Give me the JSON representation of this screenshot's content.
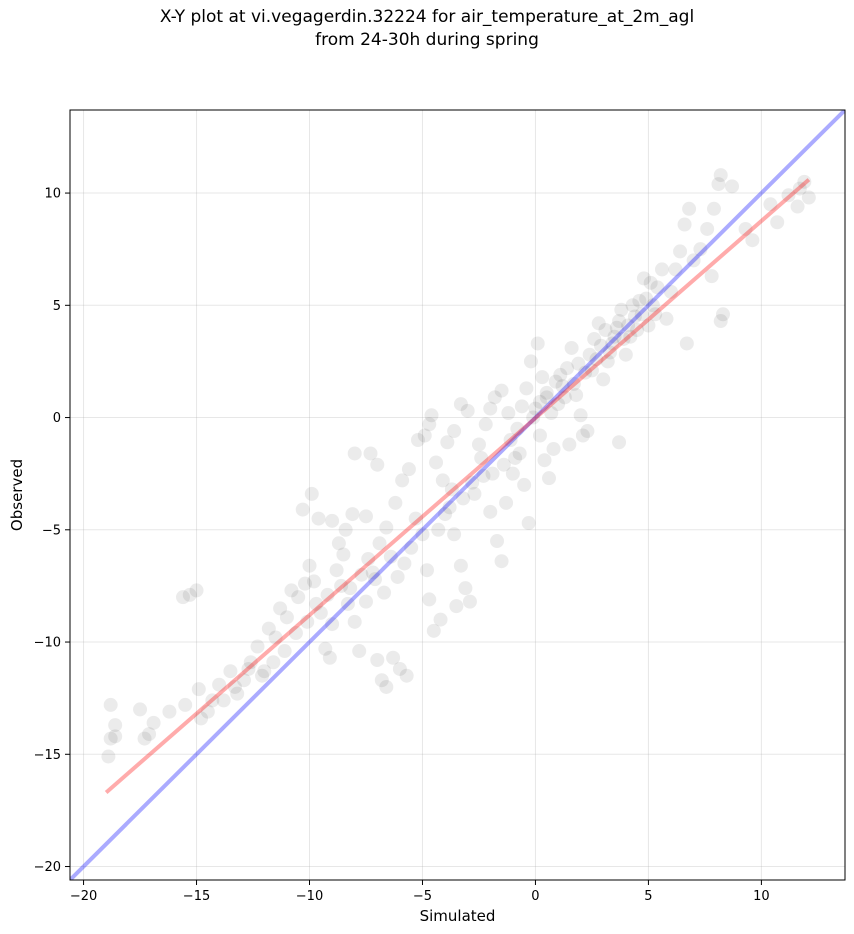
{
  "title": {
    "line1": "X-Y plot at vi.vegagerdin.32224 for air_temperature_at_2m_agl",
    "line2": "from 24-30h during spring"
  },
  "chart_data": {
    "type": "scatter",
    "xlabel": "Simulated",
    "ylabel": "Observed",
    "xlim": [
      -20.6,
      13.7
    ],
    "ylim": [
      -20.6,
      13.7
    ],
    "xticks": [
      -20,
      -15,
      -10,
      -5,
      0,
      5,
      10
    ],
    "yticks": [
      -20,
      -15,
      -10,
      -5,
      0,
      5,
      10
    ],
    "grid": true,
    "point_color": "#000000",
    "point_alpha": 0.08,
    "series": [
      {
        "points": [
          [
            -18.9,
            -15.1
          ],
          [
            -18.8,
            -14.3
          ],
          [
            -18.8,
            -12.8
          ],
          [
            -18.6,
            -14.2
          ],
          [
            -18.6,
            -13.7
          ],
          [
            -17.5,
            -13.0
          ],
          [
            -17.3,
            -14.3
          ],
          [
            -17.1,
            -14.1
          ],
          [
            -16.9,
            -13.6
          ],
          [
            -16.2,
            -13.1
          ],
          [
            -15.6,
            -8.0
          ],
          [
            -15.3,
            -7.9
          ],
          [
            -15.0,
            -7.7
          ],
          [
            -15.5,
            -12.8
          ],
          [
            -14.9,
            -12.1
          ],
          [
            -14.8,
            -13.4
          ],
          [
            -14.5,
            -13.1
          ],
          [
            -14.3,
            -12.6
          ],
          [
            -14.0,
            -11.9
          ],
          [
            -13.5,
            -11.3
          ],
          [
            -13.2,
            -12.3
          ],
          [
            -12.9,
            -11.7
          ],
          [
            -12.6,
            -10.9
          ],
          [
            -12.3,
            -10.2
          ],
          [
            -12.0,
            -11.3
          ],
          [
            -11.8,
            -9.4
          ],
          [
            -11.5,
            -9.8
          ],
          [
            -11.3,
            -8.5
          ],
          [
            -11.0,
            -8.9
          ],
          [
            -10.8,
            -7.7
          ],
          [
            -10.5,
            -8.0
          ],
          [
            -10.2,
            -7.4
          ],
          [
            -10.0,
            -6.6
          ],
          [
            -9.8,
            -7.3
          ],
          [
            -9.5,
            -8.7
          ],
          [
            -9.0,
            -9.2
          ],
          [
            -9.9,
            -3.4
          ],
          [
            -10.3,
            -4.1
          ],
          [
            -9.6,
            -4.5
          ],
          [
            -9.0,
            -4.6
          ],
          [
            -9.3,
            -10.3
          ],
          [
            -9.1,
            -10.7
          ],
          [
            -8.7,
            -5.6
          ],
          [
            -8.4,
            -5.0
          ],
          [
            -8.1,
            -4.3
          ],
          [
            -8.0,
            -1.6
          ],
          [
            -7.5,
            -4.4
          ],
          [
            -7.3,
            -1.6
          ],
          [
            -7.0,
            -2.1
          ],
          [
            -8.8,
            -6.8
          ],
          [
            -8.5,
            -6.1
          ],
          [
            -8.2,
            -7.6
          ],
          [
            -8.0,
            -9.1
          ],
          [
            -7.8,
            -10.4
          ],
          [
            -7.5,
            -8.2
          ],
          [
            -7.2,
            -6.9
          ],
          [
            -7.0,
            -10.8
          ],
          [
            -6.8,
            -11.7
          ],
          [
            -6.6,
            -12.0
          ],
          [
            -6.3,
            -10.7
          ],
          [
            -6.0,
            -11.2
          ],
          [
            -5.7,
            -11.5
          ],
          [
            -6.9,
            -5.6
          ],
          [
            -6.6,
            -4.9
          ],
          [
            -6.2,
            -3.8
          ],
          [
            -5.9,
            -2.8
          ],
          [
            -5.6,
            -2.3
          ],
          [
            -5.3,
            -4.5
          ],
          [
            -5.0,
            -5.2
          ],
          [
            -4.8,
            -6.8
          ],
          [
            -4.7,
            -8.1
          ],
          [
            -4.5,
            -9.5
          ],
          [
            -4.2,
            -9.0
          ],
          [
            -5.2,
            -1.0
          ],
          [
            -4.9,
            -0.8
          ],
          [
            -4.7,
            -0.3
          ],
          [
            -4.6,
            0.1
          ],
          [
            -4.4,
            -2.0
          ],
          [
            -4.1,
            -2.8
          ],
          [
            -3.8,
            -4.0
          ],
          [
            -3.6,
            -5.2
          ],
          [
            -3.3,
            -6.6
          ],
          [
            -3.1,
            -7.6
          ],
          [
            -3.5,
            -8.4
          ],
          [
            -2.9,
            -8.2
          ],
          [
            -3.9,
            -1.1
          ],
          [
            -3.6,
            -0.6
          ],
          [
            -3.3,
            0.6
          ],
          [
            -3.0,
            0.3
          ],
          [
            -2.5,
            -1.2
          ],
          [
            -2.2,
            -0.3
          ],
          [
            -2.0,
            0.4
          ],
          [
            -1.8,
            0.9
          ],
          [
            -1.5,
            1.2
          ],
          [
            -1.2,
            0.2
          ],
          [
            -2.7,
            -3.4
          ],
          [
            -2.3,
            -2.6
          ],
          [
            -2.0,
            -4.2
          ],
          [
            -1.7,
            -5.5
          ],
          [
            -1.5,
            -6.4
          ],
          [
            -1.3,
            -3.8
          ],
          [
            -1.0,
            -2.5
          ],
          [
            -0.7,
            -1.6
          ],
          [
            -0.5,
            -3.0
          ],
          [
            -0.3,
            -4.7
          ],
          [
            -0.8,
            -0.5
          ],
          [
            -0.6,
            0.5
          ],
          [
            -0.4,
            1.3
          ],
          [
            -0.2,
            2.5
          ],
          [
            0.1,
            3.3
          ],
          [
            0.3,
            1.8
          ],
          [
            0.5,
            0.9
          ],
          [
            0.7,
            0.2
          ],
          [
            0.2,
            -0.8
          ],
          [
            0.4,
            -1.9
          ],
          [
            0.6,
            -2.7
          ],
          [
            0.8,
            -1.4
          ],
          [
            1.0,
            0.6
          ],
          [
            1.2,
            1.4
          ],
          [
            1.4,
            2.2
          ],
          [
            1.6,
            3.1
          ],
          [
            1.8,
            1.0
          ],
          [
            2.0,
            0.1
          ],
          [
            2.1,
            -0.8
          ],
          [
            1.5,
            -1.2
          ],
          [
            2.2,
            2.0
          ],
          [
            2.4,
            2.8
          ],
          [
            2.6,
            3.5
          ],
          [
            2.8,
            4.2
          ],
          [
            3.0,
            1.7
          ],
          [
            3.2,
            2.5
          ],
          [
            3.4,
            3.3
          ],
          [
            3.6,
            4.0
          ],
          [
            3.8,
            4.8
          ],
          [
            4.0,
            2.8
          ],
          [
            4.2,
            3.6
          ],
          [
            4.4,
            4.5
          ],
          [
            4.6,
            5.2
          ],
          [
            4.8,
            6.2
          ],
          [
            5.0,
            4.1
          ],
          [
            5.2,
            5.0
          ],
          [
            5.4,
            5.8
          ],
          [
            5.6,
            6.6
          ],
          [
            5.8,
            4.4
          ],
          [
            6.0,
            5.6
          ],
          [
            6.2,
            6.6
          ],
          [
            6.4,
            7.4
          ],
          [
            6.6,
            8.6
          ],
          [
            6.8,
            9.3
          ],
          [
            7.0,
            7.0
          ],
          [
            7.3,
            7.5
          ],
          [
            7.6,
            8.4
          ],
          [
            7.9,
            9.3
          ],
          [
            8.1,
            10.4
          ],
          [
            8.2,
            10.8
          ],
          [
            8.7,
            10.3
          ],
          [
            8.3,
            4.6
          ],
          [
            8.2,
            4.3
          ],
          [
            7.8,
            6.3
          ],
          [
            6.7,
            3.3
          ],
          [
            9.3,
            8.4
          ],
          [
            9.6,
            7.9
          ],
          [
            10.4,
            9.5
          ],
          [
            10.7,
            8.7
          ],
          [
            11.2,
            9.9
          ],
          [
            11.6,
            9.4
          ],
          [
            11.9,
            10.5
          ],
          [
            12.1,
            9.8
          ],
          [
            11.7,
            10.2
          ],
          [
            3.7,
            -1.1
          ],
          [
            2.3,
            -0.6
          ],
          [
            -0.1,
            0.0
          ],
          [
            0.0,
            0.4
          ],
          [
            0.2,
            0.7
          ],
          [
            0.5,
            1.1
          ],
          [
            0.9,
            1.6
          ],
          [
            1.1,
            1.9
          ],
          [
            1.3,
            0.9
          ],
          [
            1.7,
            1.5
          ],
          [
            1.9,
            2.4
          ],
          [
            2.5,
            2.1
          ],
          [
            2.7,
            2.6
          ],
          [
            2.9,
            3.2
          ],
          [
            3.1,
            3.9
          ],
          [
            3.3,
            2.9
          ],
          [
            3.5,
            3.6
          ],
          [
            3.7,
            4.3
          ],
          [
            3.9,
            3.5
          ],
          [
            4.1,
            4.1
          ],
          [
            4.3,
            5.0
          ],
          [
            4.5,
            3.9
          ],
          [
            4.7,
            4.6
          ],
          [
            4.9,
            5.3
          ],
          [
            5.1,
            6.0
          ],
          [
            5.3,
            4.6
          ],
          [
            -1.1,
            -1.0
          ],
          [
            -0.9,
            -1.8
          ],
          [
            -1.4,
            -2.1
          ],
          [
            -1.9,
            -2.5
          ],
          [
            -2.4,
            -1.8
          ],
          [
            -2.8,
            -2.9
          ],
          [
            -3.2,
            -3.6
          ],
          [
            -3.7,
            -3.2
          ],
          [
            -4.0,
            -4.3
          ],
          [
            -4.3,
            -5.0
          ],
          [
            -5.5,
            -5.8
          ],
          [
            -5.8,
            -6.5
          ],
          [
            -6.1,
            -7.1
          ],
          [
            -6.4,
            -6.2
          ],
          [
            -6.7,
            -7.8
          ],
          [
            -7.1,
            -7.2
          ],
          [
            -7.4,
            -6.3
          ],
          [
            -7.7,
            -7.0
          ],
          [
            -8.3,
            -8.3
          ],
          [
            -8.6,
            -7.5
          ],
          [
            -9.2,
            -7.9
          ],
          [
            -9.7,
            -8.3
          ],
          [
            -10.1,
            -9.1
          ],
          [
            -10.6,
            -9.6
          ],
          [
            -11.1,
            -10.4
          ],
          [
            -11.6,
            -10.9
          ],
          [
            -12.1,
            -11.5
          ],
          [
            -12.7,
            -11.2
          ],
          [
            -13.3,
            -12.0
          ],
          [
            -13.8,
            -12.6
          ]
        ]
      }
    ],
    "lines": [
      {
        "name_key": "identity",
        "color": "#0000ff",
        "alpha": 0.33,
        "x": [
          -20.6,
          13.7
        ],
        "y": [
          -20.6,
          13.7
        ]
      },
      {
        "name_key": "fit",
        "color": "#ff0000",
        "alpha": 0.33,
        "x": [
          -19.0,
          12.1
        ],
        "y": [
          -16.7,
          10.6
        ]
      }
    ]
  }
}
